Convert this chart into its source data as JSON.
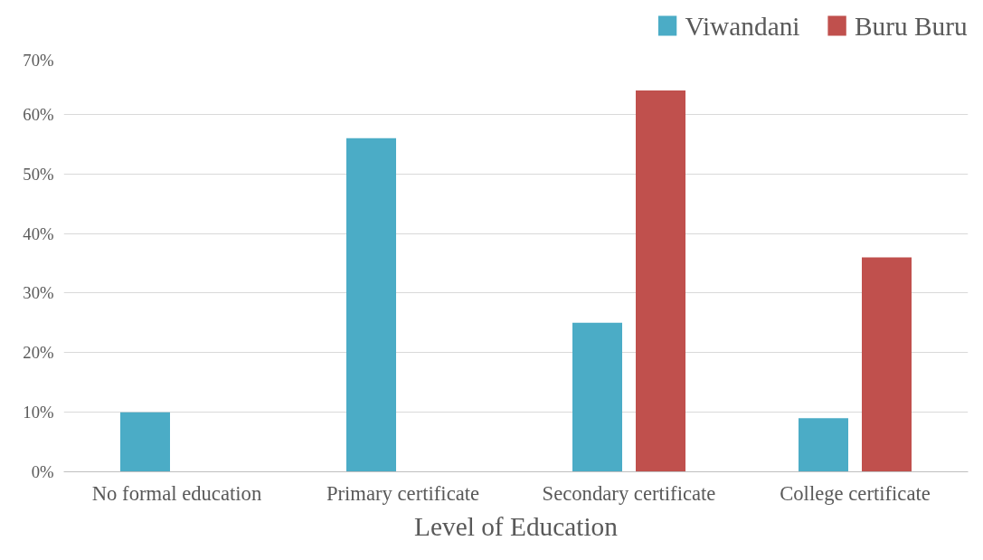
{
  "chart_data": {
    "type": "bar",
    "xlabel": "Level of Education",
    "categories": [
      "No formal education",
      "Primary certificate",
      "Secondary certificate",
      "College certificate"
    ],
    "series": [
      {
        "name": "Viwandani",
        "color": "#4bacc6",
        "values": [
          10,
          56,
          25,
          9
        ]
      },
      {
        "name": "Buru Buru",
        "color": "#c0504d",
        "values": [
          0,
          0,
          64,
          36
        ]
      }
    ],
    "ylim": [
      0,
      70
    ],
    "yticks": [
      {
        "value": 0,
        "label": "0%"
      },
      {
        "value": 10,
        "label": "10%"
      },
      {
        "value": 20,
        "label": "20%"
      },
      {
        "value": 30,
        "label": "30%"
      },
      {
        "value": 40,
        "label": "40%"
      },
      {
        "value": 50,
        "label": "50%"
      },
      {
        "value": 60,
        "label": "60%"
      },
      {
        "value": 70,
        "label": "70%"
      }
    ],
    "grid": "y",
    "legend": "top right"
  }
}
